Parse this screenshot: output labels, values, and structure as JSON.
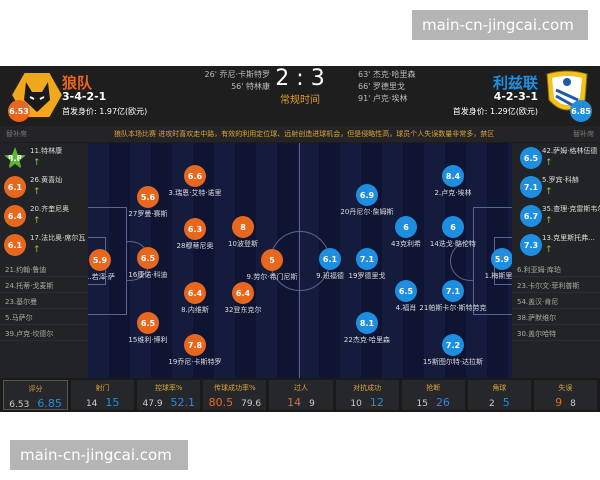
{
  "watermark": "main-cn-jingcai.com",
  "colors": {
    "home": "#e8671e",
    "away": "#1e8fe0",
    "accent": "#d9a53a",
    "green": "#7ecb3a"
  },
  "score": "2 : 3",
  "period": "常规时间",
  "home": {
    "name": "狼队",
    "rating": "6.53",
    "formation": "3-4-2-1",
    "value": "首发身价: 1.97亿(欧元)",
    "events": [
      "26' 乔尼·卡斯特罗",
      "56' 特林康"
    ],
    "players": [
      {
        "rating": "5.9",
        "name": "1.若泽·萨"
      },
      {
        "rating": "5.6",
        "name": "27罗曼·赛斯",
        "events": [
          "red-card"
        ]
      },
      {
        "rating": "6.5",
        "name": "16康诺·科迪",
        "events": [
          "captain"
        ]
      },
      {
        "rating": "6.5",
        "name": "15维利·博利",
        "events": [
          "yellow-card"
        ]
      },
      {
        "rating": "6.6",
        "name": "3.瑞恩·艾特·诺里"
      },
      {
        "rating": "6.3",
        "name": "28穆蒂尼奥"
      },
      {
        "rating": "6.4",
        "name": "8.内维斯",
        "events": [
          "sub-off"
        ]
      },
      {
        "rating": "7.8",
        "name": "19乔尼·卡斯特罗",
        "events": [
          "goal",
          "sub-off"
        ]
      },
      {
        "rating": "8",
        "name": "10波登斯",
        "events": [
          "assist",
          "sub-off"
        ]
      },
      {
        "rating": "6.4",
        "name": "32登东克尔",
        "events": [
          "sub-off"
        ]
      },
      {
        "rating": "5",
        "name": "9.劳尔·希门尼斯",
        "events": [
          "yellow-card",
          "yellow-card"
        ]
      }
    ],
    "subs": [
      {
        "rating": "8.8",
        "name": "11.特林康",
        "star": true
      },
      {
        "rating": "6.1",
        "name": "26.黄喜灿"
      },
      {
        "rating": "6.4",
        "name": "20.齐奎尼奥"
      },
      {
        "rating": "6.1",
        "name": "17.法比奥·席尔瓦"
      }
    ],
    "bench": [
      "21.约翰·鲁迪",
      "24.托蒂·戈麦斯",
      "23.基尔曼",
      "5.马萨尔",
      "39.卢克·坎德尔"
    ]
  },
  "away": {
    "name": "利兹联",
    "rating": "6.85",
    "formation": "4-2-3-1",
    "value": "首发身价: 1.29亿(欧元)",
    "events": [
      "63' 杰克·哈里森",
      "66' 罗德里戈",
      "91' 卢克·埃林"
    ],
    "players": [
      {
        "rating": "8.4",
        "name": "2.卢克·埃林",
        "events": [
          "assist",
          "goal"
        ]
      },
      {
        "rating": "6.9",
        "name": "20丹尼尔·詹姆斯",
        "events": [
          "assist"
        ]
      },
      {
        "rating": "6",
        "name": "43克利希",
        "events": [
          "sub-off"
        ]
      },
      {
        "rating": "6",
        "name": "14迭戈·略伦特",
        "events": [
          "sub-off"
        ]
      },
      {
        "rating": "6.1",
        "name": "9.班福德",
        "events": [
          "sub-off"
        ]
      },
      {
        "rating": "7.1",
        "name": "19罗德里戈",
        "events": [
          "goal",
          "yellow-card"
        ]
      },
      {
        "rating": "5.9",
        "name": "1.梅斯里耶",
        "events": [
          "sub-off"
        ]
      },
      {
        "rating": "6.5",
        "name": "4.福肖",
        "events": [
          "yellow-card"
        ]
      },
      {
        "rating": "7.1",
        "name": "21帕斯卡尔·斯特劳克",
        "events": [
          "yellow-card"
        ]
      },
      {
        "rating": "8.1",
        "name": "22杰克·哈里森",
        "events": [
          "goal"
        ]
      },
      {
        "rating": "7.2",
        "name": "15斯图尔特·达拉斯"
      }
    ],
    "subs": [
      {
        "rating": "6.5",
        "name": "42.萨姆·格林伍德"
      },
      {
        "rating": "7.1",
        "name": "5.罗宾·科赫"
      },
      {
        "rating": "6.7",
        "name": "35.查理·克雷斯韦尔"
      },
      {
        "rating": "7.3",
        "name": "13.克里斯托弗..."
      }
    ],
    "bench": [
      "6.利亚姆·库珀",
      "23.卡尔文·菲利普斯",
      "54.盖汉·肯尼",
      "38.萨默维尔",
      "30.盖尔哈特"
    ]
  },
  "bench_label": "替补席",
  "comment": "狼队本场比赛 进攻时喜欢走中路，有效的利用定位球、远射创造进球机会，但是侵略性高，球员个人失误数量非常多，禁区",
  "stats": [
    {
      "label": "评分",
      "home": "6.53",
      "away": "6.85",
      "lead": "away"
    },
    {
      "label": "射门",
      "home": "14",
      "away": "15",
      "lead": "away"
    },
    {
      "label": "控球率%",
      "home": "47.9",
      "away": "52.1",
      "lead": "away"
    },
    {
      "label": "传球成功率%",
      "home": "80.5",
      "away": "79.6",
      "lead": "home"
    },
    {
      "label": "过人",
      "home": "14",
      "away": "9",
      "lead": "home"
    },
    {
      "label": "对抗成功",
      "home": "10",
      "away": "12",
      "lead": "away"
    },
    {
      "label": "抢断",
      "home": "15",
      "away": "26",
      "lead": "away"
    },
    {
      "label": "角球",
      "home": "2",
      "away": "5",
      "lead": "away"
    },
    {
      "label": "失误",
      "home": "9",
      "away": "8",
      "lead": "home"
    }
  ]
}
